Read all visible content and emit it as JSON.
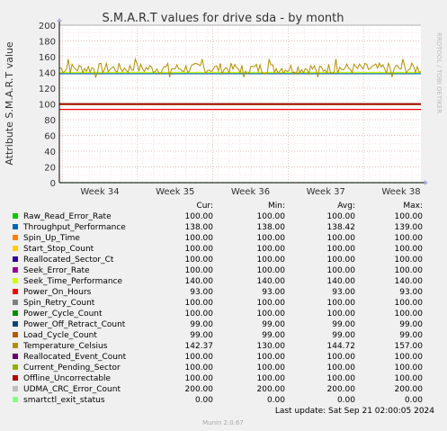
{
  "chart_data": {
    "type": "line",
    "title": "S.M.A.R.T values for drive sda - by month",
    "ylabel": "Attribute S.M.A.R.T value",
    "xlabel": "",
    "ylim": [
      0,
      200
    ],
    "y_ticks": [
      "0",
      "20",
      "40",
      "60",
      "80",
      "100",
      "120",
      "140",
      "160",
      "180",
      "200"
    ],
    "x_ticks": [
      "Week 34",
      "Week 35",
      "Week 36",
      "Week 37",
      "Week 38"
    ],
    "grid": true,
    "side_text": "RRDTOOL / TOBI OETIKER",
    "legend_headers": {
      "cur": "Cur:",
      "min": "Min:",
      "avg": "Avg:",
      "max": "Max:"
    },
    "series": [
      {
        "name": "Raw_Read_Error_Rate",
        "color": "#00cc00",
        "cur": "100.00",
        "min": "100.00",
        "avg": "100.00",
        "max": "100.00",
        "value": 100
      },
      {
        "name": "Throughput_Performance",
        "color": "#0066b3",
        "cur": "138.00",
        "min": "138.00",
        "avg": "138.42",
        "max": "139.00",
        "value": 138.42
      },
      {
        "name": "Spin_Up_Time",
        "color": "#ff8000",
        "cur": "100.00",
        "min": "100.00",
        "avg": "100.00",
        "max": "100.00",
        "value": 100
      },
      {
        "name": "Start_Stop_Count",
        "color": "#ffcc00",
        "cur": "100.00",
        "min": "100.00",
        "avg": "100.00",
        "max": "100.00",
        "value": 100
      },
      {
        "name": "Reallocated_Sector_Ct",
        "color": "#330099",
        "cur": "100.00",
        "min": "100.00",
        "avg": "100.00",
        "max": "100.00",
        "value": 100
      },
      {
        "name": "Seek_Error_Rate",
        "color": "#990099",
        "cur": "100.00",
        "min": "100.00",
        "avg": "100.00",
        "max": "100.00",
        "value": 100
      },
      {
        "name": "Seek_Time_Performance",
        "color": "#ccff00",
        "cur": "140.00",
        "min": "140.00",
        "avg": "140.00",
        "max": "140.00",
        "value": 140
      },
      {
        "name": "Power_On_Hours",
        "color": "#ff0000",
        "cur": "93.00",
        "min": "93.00",
        "avg": "93.00",
        "max": "93.00",
        "value": 93
      },
      {
        "name": "Spin_Retry_Count",
        "color": "#808080",
        "cur": "100.00",
        "min": "100.00",
        "avg": "100.00",
        "max": "100.00",
        "value": 100
      },
      {
        "name": "Power_Cycle_Count",
        "color": "#008f00",
        "cur": "100.00",
        "min": "100.00",
        "avg": "100.00",
        "max": "100.00",
        "value": 100
      },
      {
        "name": "Power_Off_Retract_Count",
        "color": "#00487d",
        "cur": "99.00",
        "min": "99.00",
        "avg": "99.00",
        "max": "99.00",
        "value": 99
      },
      {
        "name": "Load_Cycle_Count",
        "color": "#b35a00",
        "cur": "99.00",
        "min": "99.00",
        "avg": "99.00",
        "max": "99.00",
        "value": 99
      },
      {
        "name": "Temperature_Celsius",
        "color": "#b38f00",
        "cur": "142.37",
        "min": "130.00",
        "avg": "144.72",
        "max": "157.00",
        "value": 144.72,
        "noisy": true
      },
      {
        "name": "Reallocated_Event_Count",
        "color": "#6b006b",
        "cur": "100.00",
        "min": "100.00",
        "avg": "100.00",
        "max": "100.00",
        "value": 100
      },
      {
        "name": "Current_Pending_Sector",
        "color": "#8fb300",
        "cur": "100.00",
        "min": "100.00",
        "avg": "100.00",
        "max": "100.00",
        "value": 100
      },
      {
        "name": "Offline_Uncorrectable",
        "color": "#b30000",
        "cur": "100.00",
        "min": "100.00",
        "avg": "100.00",
        "max": "100.00",
        "value": 100
      },
      {
        "name": "UDMA_CRC_Error_Count",
        "color": "#bebebe",
        "cur": "200.00",
        "min": "200.00",
        "avg": "200.00",
        "max": "200.00",
        "value": 200
      },
      {
        "name": "smartctl_exit_status",
        "color": "#80ff80",
        "cur": "0.00",
        "min": "0.00",
        "avg": "0.00",
        "max": "0.00",
        "value": 0,
        "dashed": true
      }
    ],
    "last_update": "Last update: Sat Sep 21 02:00:05 2024",
    "footer": "Munin 2.0.67"
  }
}
